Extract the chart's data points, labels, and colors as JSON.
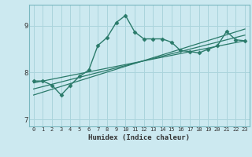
{
  "xlabel": "Humidex (Indice chaleur)",
  "bg_color": "#cce9f0",
  "grid_color": "#aad4dc",
  "line_color": "#2a7a6a",
  "xlim": [
    -0.5,
    23.5
  ],
  "ylim": [
    6.85,
    9.45
  ],
  "xticks": [
    0,
    1,
    2,
    3,
    4,
    5,
    6,
    7,
    8,
    9,
    10,
    11,
    12,
    13,
    14,
    15,
    16,
    17,
    18,
    19,
    20,
    21,
    22,
    23
  ],
  "yticks": [
    7,
    8,
    9
  ],
  "main_x": [
    0,
    1,
    2,
    3,
    4,
    5,
    6,
    7,
    8,
    9,
    10,
    11,
    12,
    13,
    14,
    15,
    16,
    17,
    18,
    19,
    20,
    21,
    22,
    23
  ],
  "main_y": [
    7.82,
    7.82,
    7.73,
    7.52,
    7.73,
    7.92,
    8.05,
    8.58,
    8.75,
    9.07,
    9.22,
    8.87,
    8.72,
    8.72,
    8.72,
    8.65,
    8.47,
    8.45,
    8.42,
    8.5,
    8.57,
    8.88,
    8.7,
    8.68
  ],
  "line1_x": [
    0,
    23
  ],
  "line1_y": [
    7.78,
    8.68
  ],
  "line2_x": [
    0,
    23
  ],
  "line2_y": [
    7.65,
    8.8
  ],
  "line3_x": [
    0,
    23
  ],
  "line3_y": [
    7.52,
    8.93
  ]
}
